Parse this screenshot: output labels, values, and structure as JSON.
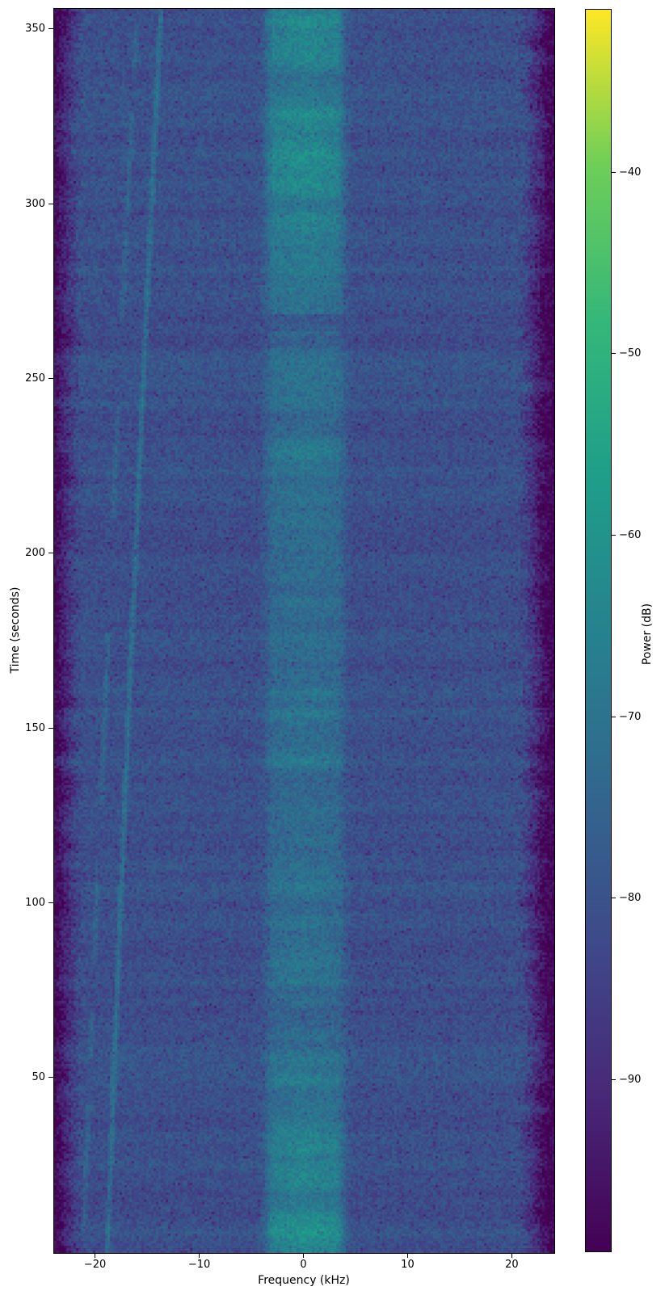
{
  "chart_data": {
    "type": "heatmap",
    "subtype": "spectrogram",
    "title": "",
    "xlabel": "Frequency (kHz)",
    "ylabel": "Time (seconds)",
    "colorbar_label": "Power (dB)",
    "x_range_khz": [
      -24,
      24
    ],
    "x_tick_values": [
      -20,
      -10,
      0,
      10,
      20
    ],
    "x_tick_labels": [
      "−20",
      "−10",
      "0",
      "10",
      "20"
    ],
    "y_range_s": [
      0,
      356
    ],
    "y_tick_values": [
      50,
      100,
      150,
      200,
      250,
      300,
      350
    ],
    "y_tick_labels": [
      "50",
      "100",
      "150",
      "200",
      "250",
      "300",
      "350"
    ],
    "colorbar_range_db": [
      -99.5,
      -31
    ],
    "colorbar_tick_values": [
      -40,
      -50,
      -60,
      -70,
      -80,
      -90
    ],
    "colorbar_tick_labels": [
      "−40",
      "−50",
      "−60",
      "−70",
      "−80",
      "−90"
    ],
    "grid": false,
    "legend": "none",
    "colormap": "viridis",
    "viridis_stops": [
      [
        "#440154",
        0
      ],
      [
        "#482878",
        0.125
      ],
      [
        "#3e4a89",
        0.25
      ],
      [
        "#31688e",
        0.375
      ],
      [
        "#26828e",
        0.5
      ],
      [
        "#1f9e89",
        0.625
      ],
      [
        "#35b779",
        0.75
      ],
      [
        "#6ece58",
        0.875
      ],
      [
        "#fde725",
        1
      ]
    ],
    "features": {
      "seed": 1337,
      "background_level_db": -80.5,
      "pixel_noise_db": 4.2,
      "row_noise_db": 2.0,
      "left_edge_start_khz": -21.4,
      "left_edge_falloff_khz": 2.4,
      "right_edge_start_khz": 20.7,
      "right_edge_falloff_khz": 2.6,
      "edge_drop_db": 17.5,
      "center_band": {
        "center_khz": 0.1,
        "half_width_khz": 2.9,
        "falloff_sigma_khz": 0.9,
        "base_boost_db": 5.5,
        "noise_boost_db": 5,
        "top_ramp_start_s": 255,
        "top_ramp_boost_db": 9,
        "bottom_ramp_start_s": 75,
        "bottom_ramp_boost_db": 7,
        "striation_depth": 0.55
      },
      "row_events": [
        {
          "time_s": 266,
          "band_gain": 0.4,
          "offset_db": -1.5
        }
      ],
      "chirp_lines": [
        {
          "style": "solid",
          "f_at_t0_khz": -18.9,
          "slope_khz_per_s": 0.01236,
          "curvature": 6.31e-06,
          "boost_db": 9.5,
          "half_width_khz": 0.3
        },
        {
          "style": "dashed",
          "f_at_t0_khz": -21.2,
          "slope_khz_per_s": 0.01236,
          "curvature": 6.31e-06,
          "boost_db": 5.5,
          "half_width_khz": 0.3
        }
      ]
    }
  }
}
